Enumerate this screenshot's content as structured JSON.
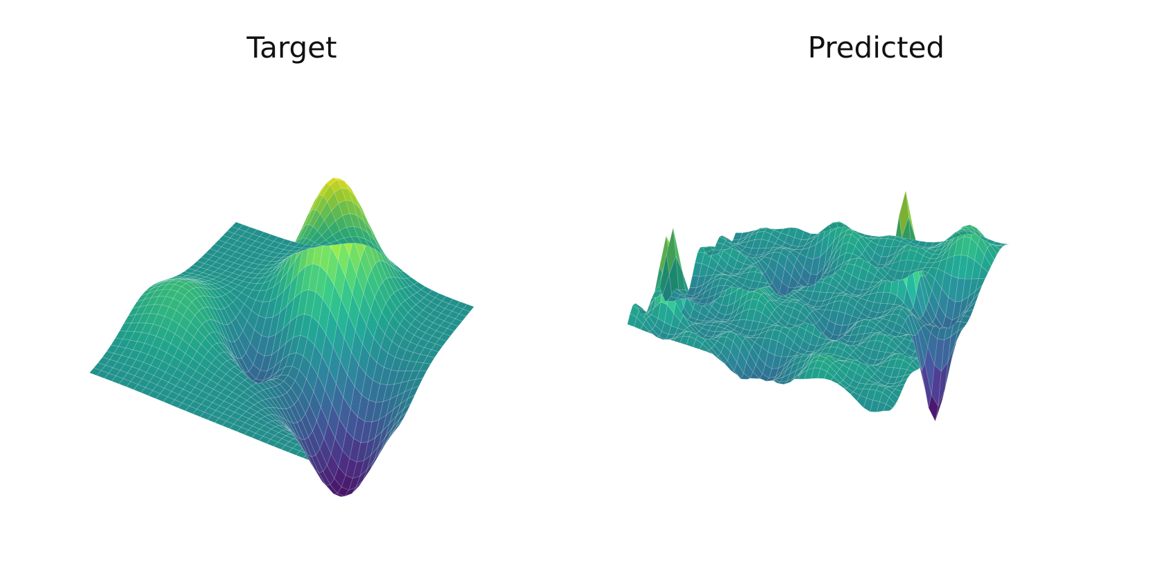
{
  "chart_data": [
    {
      "type": "surface",
      "title": "Target",
      "axes_visible": false,
      "grid": false,
      "colormap": "viridis",
      "z_range": [
        -1,
        1
      ],
      "surface_description": "smooth surface over a square domain: one large Gaussian peak near the back-right corner, a shallower bump on the left, and a deep trough near the front corner, flat elsewhere",
      "features": [
        {
          "kind": "peak",
          "u": 0.78,
          "v": 0.55,
          "amplitude": 1.0,
          "width": 0.12
        },
        {
          "kind": "bump",
          "u": 0.38,
          "v": 0.15,
          "amplitude": 0.35,
          "width": 0.14
        },
        {
          "kind": "trough",
          "u": 0.42,
          "v": 0.78,
          "amplitude": -0.9,
          "width": 0.13
        },
        {
          "kind": "trough",
          "u": 0.5,
          "v": 0.38,
          "amplitude": -0.45,
          "width": 0.09
        }
      ]
    },
    {
      "type": "surface",
      "title": "Predicted",
      "axes_visible": false,
      "grid": false,
      "colormap": "viridis",
      "z_range": [
        -1,
        1
      ],
      "surface_description": "noisy, spiky prediction of the same surface with many random peaks and dips along the edges and one tall yellow spike near the front-right",
      "features": [
        {
          "kind": "spike",
          "u": 0.7,
          "v": 0.75,
          "amplitude": 0.95,
          "width": 0.03
        },
        {
          "kind": "spike",
          "u": 0.18,
          "v": 0.08,
          "amplitude": 0.75,
          "width": 0.03
        },
        {
          "kind": "spike",
          "u": 0.3,
          "v": 0.05,
          "amplitude": 0.7,
          "width": 0.025
        },
        {
          "kind": "dip",
          "u": 0.55,
          "v": 0.92,
          "amplitude": -0.8,
          "width": 0.04
        }
      ]
    }
  ],
  "colors": {
    "viridis": [
      "#440154",
      "#482878",
      "#3e4989",
      "#31688e",
      "#26828e",
      "#1f9e89",
      "#35b779",
      "#6ece58",
      "#b5de2b",
      "#fde725"
    ],
    "background": "#ffffff"
  }
}
